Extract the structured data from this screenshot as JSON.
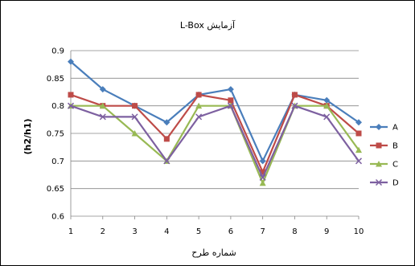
{
  "chart_data": {
    "type": "line",
    "title": "آزمایش L-Box",
    "xlabel": "شماره طرح",
    "ylabel": "(h2/h1)",
    "categories": [
      "1",
      "2",
      "3",
      "4",
      "5",
      "6",
      "7",
      "8",
      "9",
      "10"
    ],
    "ylim": [
      0.6,
      0.9
    ],
    "yticks": [
      "0.6",
      "0.65",
      "0.7",
      "0.75",
      "0.8",
      "0.85",
      "0.9"
    ],
    "grid": "horizontal",
    "legend_position": "right",
    "series": [
      {
        "name": "A",
        "color": "#4a7ebb",
        "marker": "diamond",
        "values": [
          0.88,
          0.83,
          0.8,
          0.77,
          0.82,
          0.83,
          0.7,
          0.82,
          0.81,
          0.77
        ]
      },
      {
        "name": "B",
        "color": "#be4b48",
        "marker": "square",
        "values": [
          0.82,
          0.8,
          0.8,
          0.74,
          0.82,
          0.81,
          0.68,
          0.82,
          0.8,
          0.75
        ]
      },
      {
        "name": "C",
        "color": "#98b954",
        "marker": "triangle",
        "values": [
          0.8,
          0.8,
          0.75,
          0.7,
          0.8,
          0.8,
          0.66,
          0.8,
          0.8,
          0.72
        ]
      },
      {
        "name": "D",
        "color": "#7d60a0",
        "marker": "x",
        "values": [
          0.8,
          0.78,
          0.78,
          0.7,
          0.78,
          0.8,
          0.67,
          0.8,
          0.78,
          0.7
        ]
      }
    ]
  }
}
